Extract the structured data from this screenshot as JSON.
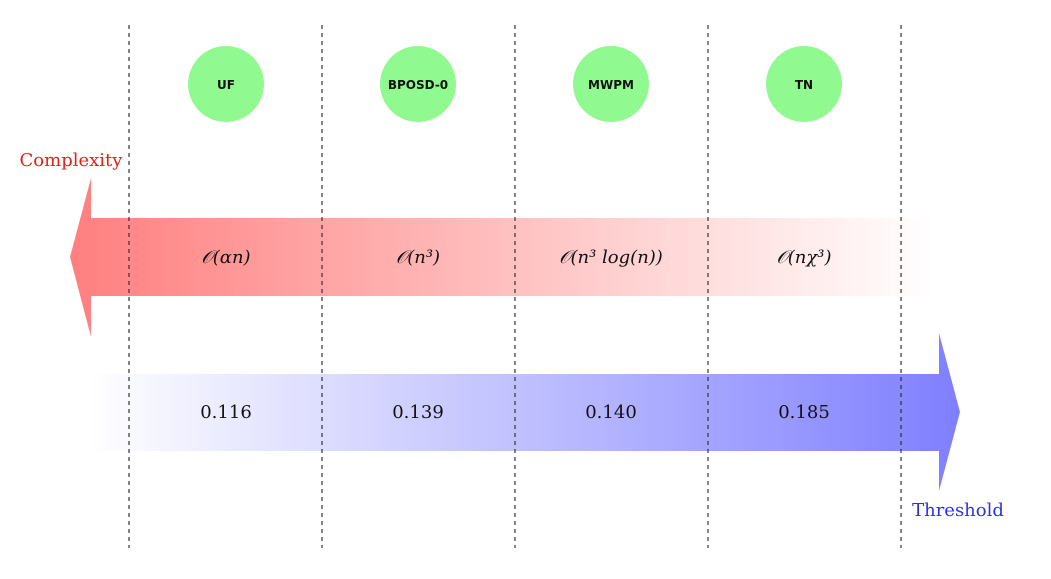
{
  "colors": {
    "complexity": "#e81c1c",
    "threshold": "#2f2fe8",
    "node_fill": "#90fa90",
    "complexity_arrow_start": "#ff7f7f",
    "threshold_arrow_end": "#7f7fff"
  },
  "labels": {
    "complexity": "Complexity",
    "threshold": "Threshold"
  },
  "decoders": [
    {
      "name": "UF",
      "complexity": "𝒪(αn)",
      "threshold": "0.116"
    },
    {
      "name": "BPOSD-0",
      "complexity": "𝒪(n³)",
      "threshold": "0.139"
    },
    {
      "name": "MWPM",
      "complexity": "𝒪(n³ log(n))",
      "threshold": "0.140"
    },
    {
      "name": "TN",
      "complexity": "𝒪(nχ³)",
      "threshold": "0.185"
    }
  ]
}
